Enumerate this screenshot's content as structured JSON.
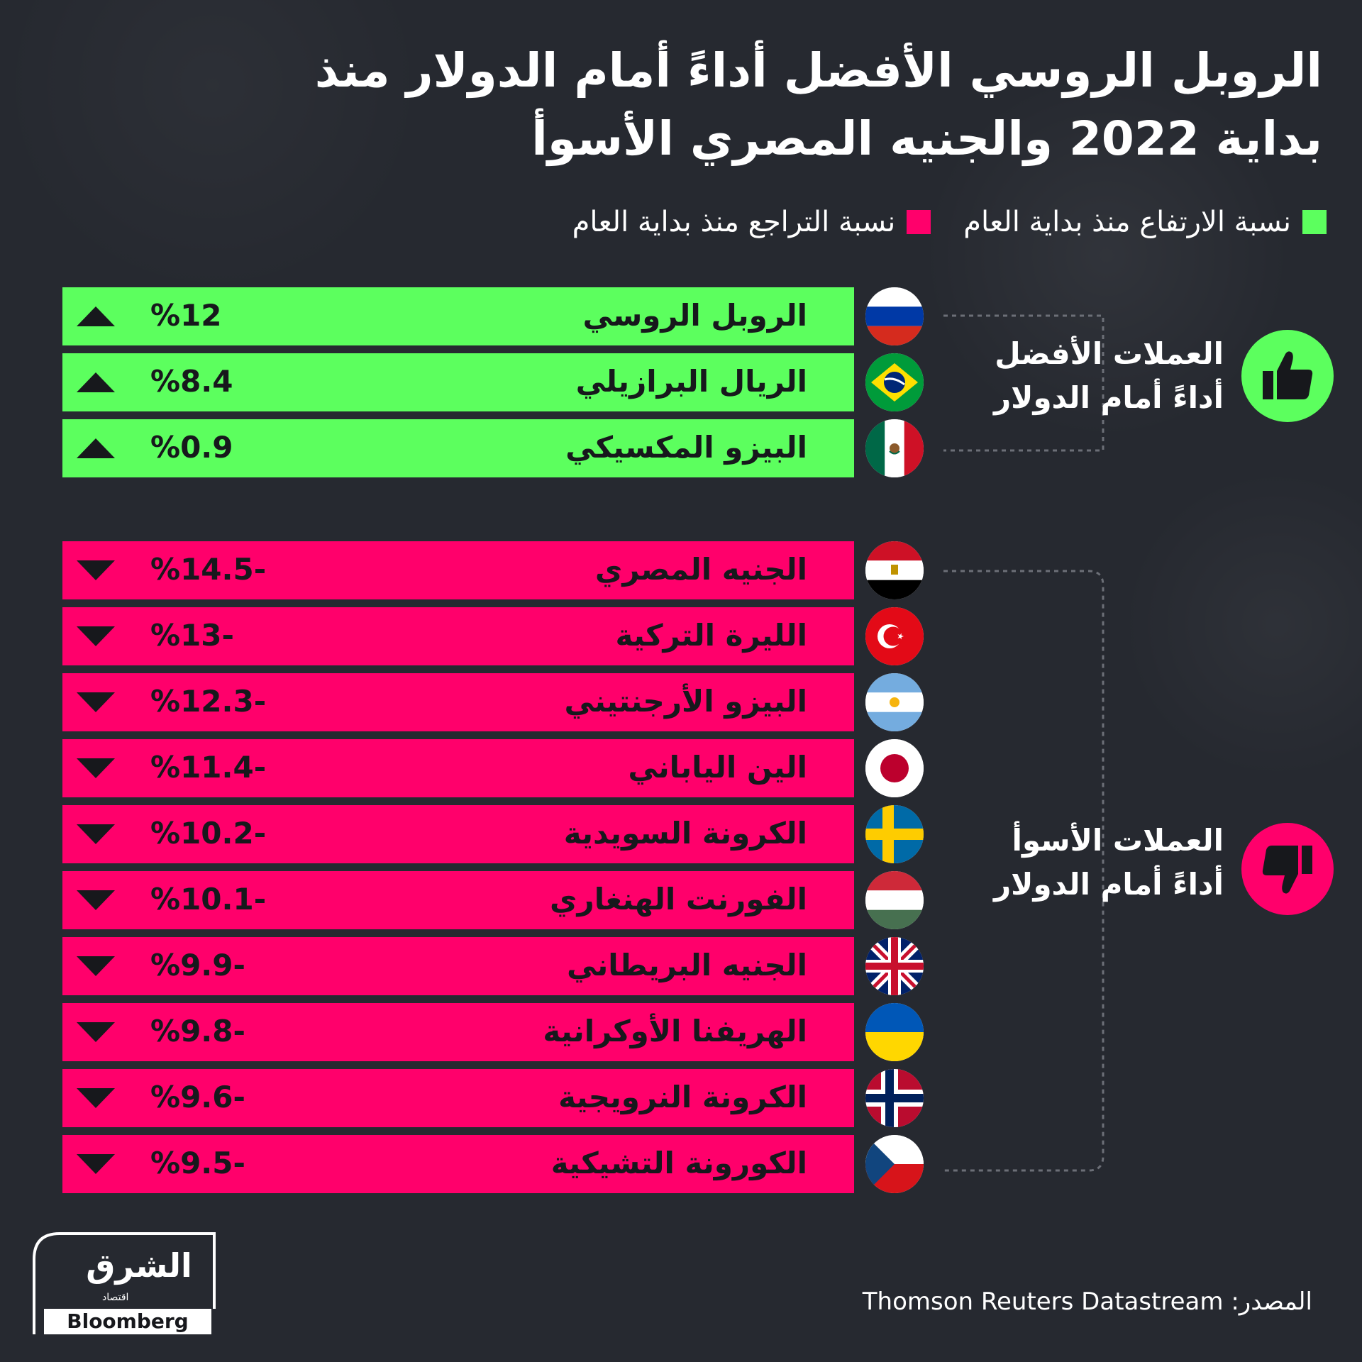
{
  "title": "الروبل الروسي الأفضل أداءً أمام الدولار منذ بداية 2022 والجنيه المصري الأسوأ",
  "legend": {
    "rise_label": "نسبة الارتفاع منذ بداية العام",
    "fall_label": "نسبة التراجع منذ بداية العام"
  },
  "colors": {
    "rise": "#5cff5e",
    "fall": "#ff006b",
    "background": "#262930"
  },
  "groups": {
    "best_line1": "العملات الأفضل",
    "best_line2": "أداءً أمام الدولار",
    "worst_line1": "العملات الأسوأ",
    "worst_line2": "أداءً أمام الدولار"
  },
  "chart_data": {
    "type": "table",
    "unit": "%",
    "rows": [
      {
        "currency": "الروبل الروسي",
        "value": 12,
        "label": "%12",
        "flag": "russia-flag-icon",
        "direction": "up"
      },
      {
        "currency": "الريال البرازيلي",
        "value": 8.4,
        "label": "%8.4",
        "flag": "brazil-flag-icon",
        "direction": "up"
      },
      {
        "currency": "البيزو المكسيكي",
        "value": 0.9,
        "label": "%0.9",
        "flag": "mexico-flag-icon",
        "direction": "up"
      },
      {
        "currency": "الجنيه المصري",
        "value": -14.5,
        "label": "%14.5-",
        "flag": "egypt-flag-icon",
        "direction": "down"
      },
      {
        "currency": "الليرة التركية",
        "value": -13,
        "label": "%13-",
        "flag": "turkey-flag-icon",
        "direction": "down"
      },
      {
        "currency": "البيزو الأرجنتيني",
        "value": -12.3,
        "label": "%12.3-",
        "flag": "argentina-flag-icon",
        "direction": "down"
      },
      {
        "currency": "الين الياباني",
        "value": -11.4,
        "label": "%11.4-",
        "flag": "japan-flag-icon",
        "direction": "down"
      },
      {
        "currency": "الكرونة السويدية",
        "value": -10.2,
        "label": "%10.2-",
        "flag": "sweden-flag-icon",
        "direction": "down"
      },
      {
        "currency": "الفورنت الهنغاري",
        "value": -10.1,
        "label": "%10.1-",
        "flag": "hungary-flag-icon",
        "direction": "down"
      },
      {
        "currency": "الجنيه البريطاني",
        "value": -9.9,
        "label": "%9.9-",
        "flag": "uk-flag-icon",
        "direction": "down"
      },
      {
        "currency": "الهريفنا الأوكرانية",
        "value": -9.8,
        "label": "%9.8-",
        "flag": "ukraine-flag-icon",
        "direction": "down"
      },
      {
        "currency": "الكرونة النرويجية",
        "value": -9.6,
        "label": "%9.6-",
        "flag": "norway-flag-icon",
        "direction": "down"
      },
      {
        "currency": "الكورونة التشيكية",
        "value": -9.5,
        "label": "%9.5-",
        "flag": "czech-flag-icon",
        "direction": "down"
      }
    ]
  },
  "logo": {
    "arabic": "الشرق",
    "sub": "اقتصاد",
    "brand": "Bloomberg"
  },
  "source": "المصدر: Thomson Reuters Datastream"
}
